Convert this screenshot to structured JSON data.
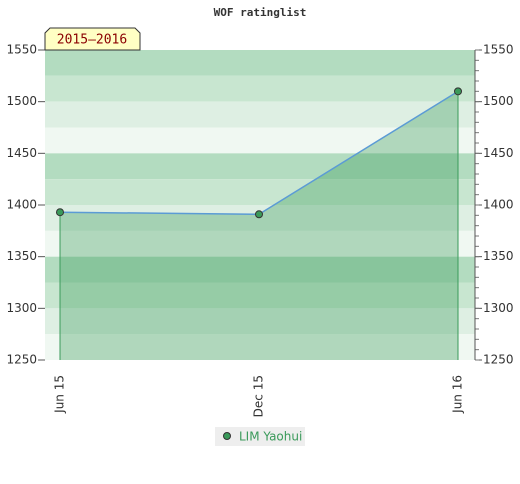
{
  "chart_data": {
    "type": "area",
    "title": "WOF ratinglist",
    "annotation": "2015–2016",
    "categories": [
      "Jun 15",
      "Dec 15",
      "Jun 16"
    ],
    "series": [
      {
        "name": "LIM Yaohui",
        "color": "#3a9a5a",
        "values": [
          1393,
          1391,
          1510
        ]
      }
    ],
    "ylim": [
      1250,
      1550
    ],
    "yticks": [
      1250,
      1300,
      1350,
      1400,
      1450,
      1500,
      1550
    ],
    "y2lim": [
      1250,
      1550
    ],
    "y2ticks": [
      1250,
      1300,
      1350,
      1400,
      1450,
      1500,
      1550
    ],
    "legend": "bottom"
  }
}
